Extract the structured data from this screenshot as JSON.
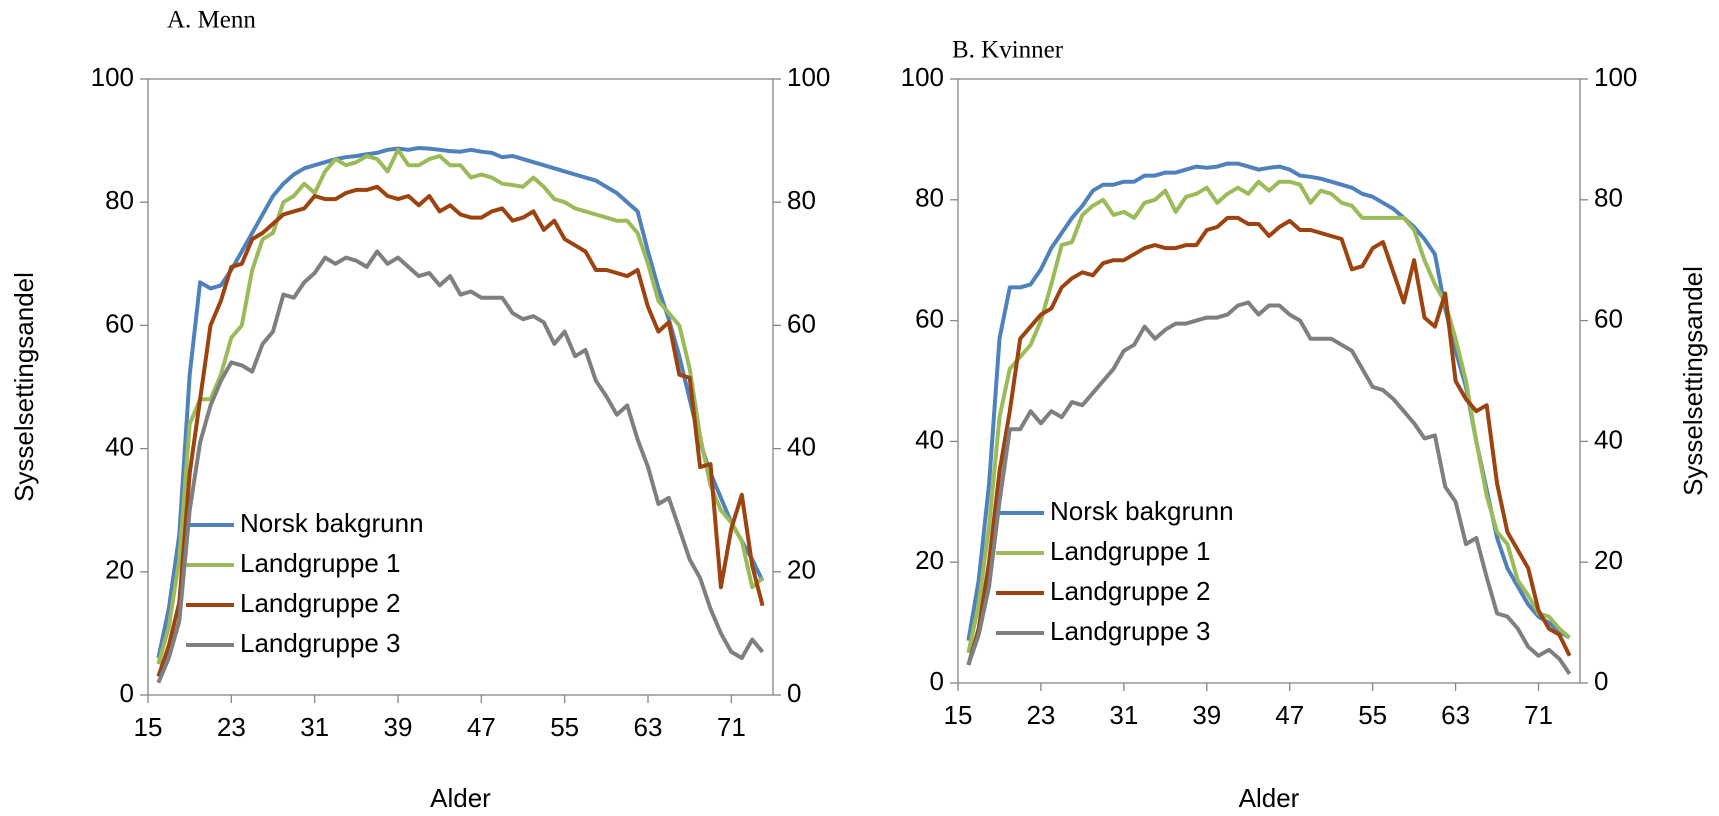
{
  "chart_data": [
    {
      "type": "line",
      "title": "A. Menn",
      "xlabel": "Alder",
      "ylabel": "Sysselsettingsandel",
      "x": [
        16,
        17,
        18,
        19,
        20,
        21,
        22,
        23,
        24,
        25,
        26,
        27,
        28,
        29,
        30,
        31,
        32,
        33,
        34,
        35,
        36,
        37,
        38,
        39,
        40,
        41,
        42,
        43,
        44,
        45,
        46,
        47,
        48,
        49,
        50,
        51,
        52,
        53,
        54,
        55,
        56,
        57,
        58,
        59,
        60,
        61,
        62,
        63,
        64,
        65,
        66,
        67,
        68,
        69,
        70,
        71,
        72,
        73,
        74
      ],
      "xlim": [
        15,
        75
      ],
      "xticks": [
        15,
        23,
        31,
        39,
        47,
        55,
        63,
        71
      ],
      "ylim": [
        0,
        100
      ],
      "yticks": [
        0,
        20,
        40,
        60,
        80,
        100
      ],
      "y2lim": [
        0,
        100
      ],
      "y2ticks": [
        0,
        20,
        40,
        60,
        80,
        100
      ],
      "legend": "lower left",
      "series": [
        {
          "name": "Norsk bakgrunn",
          "color": "#4f81bd",
          "values": [
            6,
            14,
            26,
            52,
            67,
            66,
            66.5,
            69,
            72,
            75,
            78,
            81,
            83,
            84.5,
            85.5,
            86,
            86.5,
            87,
            87.3,
            87.5,
            87.8,
            88,
            88.5,
            88.7,
            88.5,
            88.8,
            88.7,
            88.5,
            88.3,
            88.2,
            88.5,
            88.2,
            88,
            87.3,
            87.5,
            87,
            86.5,
            86,
            85.5,
            85,
            84.5,
            84,
            83.5,
            82.5,
            81.5,
            80,
            78.5,
            72,
            66,
            61,
            55,
            48,
            41,
            36,
            32,
            28,
            25,
            22,
            18.5
          ]
        },
        {
          "name": "Landgruppe 1",
          "color": "#9bbb59",
          "values": [
            5,
            11,
            22,
            44,
            48,
            48,
            52,
            58,
            60,
            69,
            74,
            75,
            80,
            81,
            83,
            81.5,
            85,
            87,
            86,
            86.5,
            87.5,
            87,
            85,
            88.5,
            86,
            86,
            87,
            87.5,
            86,
            86,
            84,
            84.5,
            84,
            83,
            82.8,
            82.5,
            84,
            82.5,
            80.5,
            80,
            79,
            78.5,
            78,
            77.5,
            77,
            77,
            75,
            70,
            64,
            62,
            60,
            53,
            42,
            34,
            30,
            28,
            25,
            17.5,
            19
          ]
        },
        {
          "name": "Landgruppe 2",
          "color": "#9c4310",
          "values": [
            3,
            8,
            15,
            36,
            48,
            60,
            64,
            69.5,
            70,
            74,
            75,
            76.5,
            78,
            78.5,
            79,
            81,
            80.5,
            80.5,
            81.5,
            82,
            82,
            82.5,
            81,
            80.5,
            81,
            79.5,
            81,
            78.5,
            79.5,
            78,
            77.5,
            77.5,
            78.5,
            79,
            77,
            77.5,
            78.5,
            75.5,
            77,
            74,
            73,
            72,
            69,
            69,
            68.5,
            68,
            69,
            63,
            59,
            60.5,
            52,
            51.5,
            37,
            37.5,
            17.5,
            27,
            32.5,
            21,
            14.5
          ]
        },
        {
          "name": "Landgruppe 3",
          "color": "#7f7f7f",
          "values": [
            2,
            6,
            12,
            30,
            41,
            47,
            51,
            54,
            53.5,
            52.5,
            57,
            59,
            65,
            64.5,
            67,
            68.5,
            71,
            70,
            71,
            70.5,
            69.5,
            72,
            70,
            71,
            69.5,
            68,
            68.5,
            66.5,
            68,
            65,
            65.5,
            64.5,
            64.5,
            64.5,
            62,
            61,
            61.5,
            60.5,
            57,
            59,
            55,
            56,
            51,
            48.5,
            45.5,
            47,
            41.5,
            37,
            31,
            32,
            27,
            22,
            19,
            14,
            10,
            7,
            6,
            9,
            7
          ]
        }
      ]
    },
    {
      "type": "line",
      "title": "B. Kvinner",
      "xlabel": "Alder",
      "y2label": "Sysselsettingsandel",
      "x": [
        16,
        17,
        18,
        19,
        20,
        21,
        22,
        23,
        24,
        25,
        26,
        27,
        28,
        29,
        30,
        31,
        32,
        33,
        34,
        35,
        36,
        37,
        38,
        39,
        40,
        41,
        42,
        43,
        44,
        45,
        46,
        47,
        48,
        49,
        50,
        51,
        52,
        53,
        54,
        55,
        56,
        57,
        58,
        59,
        60,
        61,
        62,
        63,
        64,
        65,
        66,
        67,
        68,
        69,
        70,
        71,
        72,
        73,
        74
      ],
      "xlim": [
        15,
        75
      ],
      "xticks": [
        15,
        23,
        31,
        39,
        47,
        55,
        63,
        71
      ],
      "ylim": [
        0,
        100
      ],
      "yticks": [
        0,
        20,
        40,
        60,
        80,
        100
      ],
      "y2lim": [
        0,
        100
      ],
      "y2ticks": [
        0,
        20,
        40,
        60,
        80,
        100
      ],
      "legend": "lower left",
      "series": [
        {
          "name": "Norsk bakgrunn",
          "color": "#4f81bd",
          "values": [
            7,
            17,
            33,
            57,
            65.5,
            65.5,
            66,
            68.5,
            72,
            74.5,
            77,
            79,
            81.5,
            82.5,
            82.5,
            83,
            83,
            84,
            84,
            84.5,
            84.5,
            85,
            85.5,
            85.3,
            85.5,
            86,
            86,
            85.5,
            85,
            85.3,
            85.5,
            85,
            84,
            83.8,
            83.5,
            83,
            82.5,
            82,
            81,
            80.5,
            79.5,
            78.5,
            77,
            75.5,
            73.5,
            71,
            62,
            55,
            49,
            40,
            32,
            24,
            19,
            16,
            13,
            11,
            10,
            8.5,
            7.5
          ]
        },
        {
          "name": "Landgruppe 1",
          "color": "#9bbb59",
          "values": [
            5,
            13,
            26,
            44,
            52,
            54,
            56,
            60,
            66,
            72.5,
            73,
            77.5,
            79,
            80,
            77.5,
            78,
            77,
            79.5,
            80,
            81.5,
            78,
            80.5,
            81,
            82,
            79.5,
            81,
            82,
            81,
            83,
            81.5,
            83,
            83,
            82.5,
            79.5,
            81.5,
            81,
            79.5,
            79,
            77,
            77,
            77,
            77,
            77,
            75,
            70,
            66,
            63,
            57,
            50,
            40,
            31,
            25,
            23,
            17,
            14.5,
            11.5,
            11,
            9,
            7.5
          ]
        },
        {
          "name": "Landgruppe 2",
          "color": "#9c4310",
          "values": [
            3,
            9,
            20,
            35,
            45,
            57,
            59,
            61,
            62,
            65.5,
            67,
            68,
            67.5,
            69.5,
            70,
            70,
            71,
            72,
            72.5,
            72,
            72,
            72.5,
            72.5,
            75,
            75.5,
            77,
            77,
            76,
            76,
            74,
            75.5,
            76.5,
            75,
            75,
            74.5,
            74,
            73.5,
            68.5,
            69,
            72,
            73,
            68,
            63,
            70,
            60.5,
            59,
            64.5,
            50,
            47,
            45,
            46,
            33,
            25,
            22,
            19,
            12,
            9,
            8,
            4.5
          ]
        },
        {
          "name": "Landgruppe 3",
          "color": "#7f7f7f",
          "values": [
            3,
            8,
            16,
            30,
            42,
            42,
            45,
            43,
            45,
            44,
            46.5,
            46,
            48,
            50,
            52,
            55,
            56,
            59,
            57,
            58.5,
            59.5,
            59.5,
            60,
            60.5,
            60.5,
            61,
            62.5,
            63,
            61,
            62.5,
            62.5,
            61,
            60,
            57,
            57,
            57,
            56,
            55,
            52,
            49,
            48.5,
            47,
            45,
            43,
            40.5,
            41,
            32.5,
            30,
            23,
            24,
            17.5,
            11.5,
            11,
            9,
            6,
            4.5,
            5.5,
            4,
            1.5
          ]
        }
      ]
    }
  ]
}
